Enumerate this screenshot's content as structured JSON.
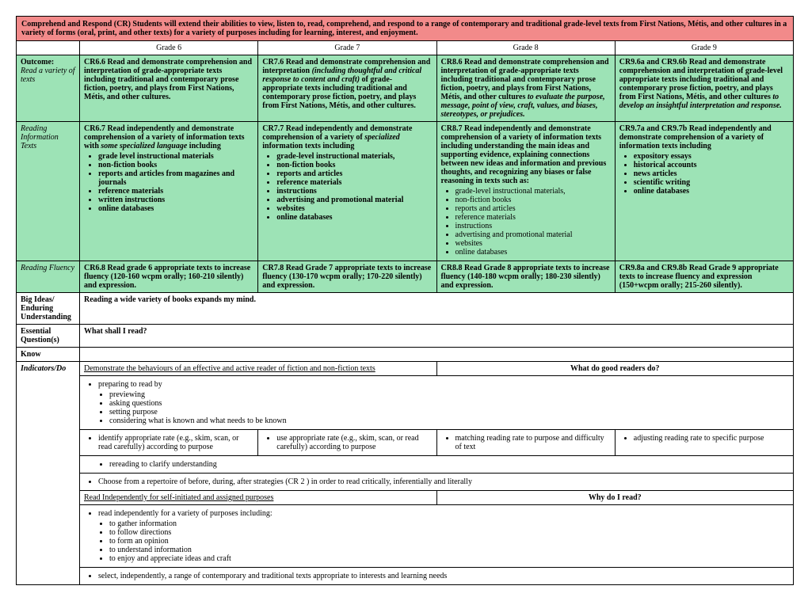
{
  "header": "Comprehend and Respond (CR) Students will extend their abilities to view, listen to, read, comprehend, and respond to a range of contemporary and traditional grade-level texts from First Nations, Métis, and other cultures in a variety of forms (oral, print, and other texts) for a variety of purposes including for learning, interest, and enjoyment.",
  "gradeHeaders": [
    "Grade 6",
    "Grade 7",
    "Grade 8",
    "Grade 9"
  ],
  "colors": {
    "header": "#f28a8a",
    "highlight": "#9de3b6"
  },
  "rows": {
    "outcome": {
      "label": "Outcome:",
      "sublabel": "Read a variety of texts",
      "g6": {
        "pre": "CR6.6 Read and demonstrate comprehension and interpretation of grade-appropriate texts including traditional and contemporary prose fiction, poetry, and plays from First Nations, Métis, and other cultures."
      },
      "g7": {
        "pre": "CR7.6 Read and demonstrate comprehension and interpretation",
        "mid": " (including thoughtful and critical response to content and craft)",
        "post": " of grade-appropriate texts including traditional and contemporary prose fiction, poetry, and plays from First Nations, Métis, and other cultures."
      },
      "g8": {
        "pre": "CR8.6 Read and demonstrate comprehension and interpretation of grade-appropriate texts including traditional and contemporary prose fiction, poetry, and plays from First Nations, Métis, and other cultures",
        "mid": " to evaluate the purpose, message, point of view, craft, values, and biases, stereotypes, or prejudices."
      },
      "g9": {
        "pre": "CR9.6a and CR9.6b Read and demonstrate comprehension and interpretation of grade-level appropriate texts including traditional and contemporary prose fiction, poetry, and plays from First Nations, Métis, and other cultures",
        "mid": " to develop an insightful interpretation and response."
      }
    },
    "reading": {
      "label": "Reading Information Texts",
      "g6": {
        "l1": "CR6.7 Read independently and demonstrate comprehension of a variety of information texts with ",
        "l2": "some specialized language ",
        "l3": "including",
        "items": [
          "grade level instructional materials",
          "non-fiction books",
          "reports and articles from magazines and journals",
          "reference materials",
          "written instructions",
          "online databases"
        ]
      },
      "g7": {
        "l1": "CR7.7 Read independently and demonstrate comprehension of a variety of ",
        "l2": "specialized",
        "l3": " information texts including",
        "items": [
          "grade-level instructional materials,",
          "non-fiction books",
          "reports and articles",
          "reference materials",
          "instructions",
          "advertising and promotional material",
          "websites",
          "online databases"
        ]
      },
      "g8": {
        "l1": "CR8.7 Read independently and demonstrate comprehension of a variety of information texts including understanding the main ideas and supporting evidence, explaining connections between new ideas and information and previous thoughts, and recognizing any biases or false reasoning in texts such as:",
        "items": [
          "grade-level instructional materials,",
          "non-fiction books",
          "reports and articles",
          "reference materials",
          "instructions",
          "advertising and promotional material",
          "websites",
          "online databases"
        ]
      },
      "g9": {
        "l1": "CR9.7a and CR9.7b Read independently and demonstrate comprehension of a variety of information texts including",
        "items": [
          "expository essays",
          "historical accounts",
          "news articles",
          "scientific writing",
          "online databases"
        ]
      }
    },
    "fluency": {
      "label": "Reading Fluency",
      "g6": "CR6.8 Read grade 6 appropriate texts to increase fluency (120-160 wcpm orally; 160-210 silently) and expression.",
      "g7": "CR7.8 Read Grade 7 appropriate texts to increase fluency (130-170 wcpm orally; 170-220 silently) and expression.",
      "g8": "CR8.8 Read Grade 8 appropriate texts to increase fluency (140-180 wcpm orally; 180-230 silently) and expression.",
      "g9": "CR9.8a and CR9.8b Read Grade 9 appropriate texts to increase fluency and expression (150+wcpm orally; 215-260 silently)."
    },
    "bigideas": {
      "label": "Big Ideas/ Enduring Understanding",
      "content": "Reading a wide variety of books expands my mind."
    },
    "essential": {
      "label": "Essential Question(s)",
      "content": "What shall I read?"
    },
    "know": {
      "label": "Know"
    },
    "indicators": {
      "label": "Indicators/Do",
      "sec1": {
        "title": "Demonstrate the behaviours of an effective and active reader of fiction and non-fiction texts",
        "q": "What do good readers do?",
        "top": "preparing to read by",
        "sub": [
          "previewing",
          "asking questions",
          "setting purpose",
          "considering what is known and what needs to be known"
        ],
        "cols": [
          "identify appropriate rate (e.g., skim, scan, or read carefully) according to purpose",
          "use appropriate rate (e.g., skim, scan, or read carefully) according to purpose",
          "matching reading rate to purpose and difficulty of text",
          "adjusting reading  rate to specific purpose"
        ],
        "reread": "rereading to clarify understanding",
        "choose": "Choose from a repertoire of before, during, after strategies (CR 2 ) in order to read critically, inferentially and literally"
      },
      "sec2": {
        "title": "Read Independently for self-initiated and assigned purposes",
        "q": "Why do I read?",
        "top": "read independently for a variety of purposes including:",
        "sub": [
          "to gather information",
          "to follow directions",
          "to form an opinion",
          "to understand information",
          "to enjoy and appreciate ideas and craft"
        ],
        "last": "select, independently, a range of contemporary and traditional texts appropriate to interests and learning needs"
      }
    }
  }
}
